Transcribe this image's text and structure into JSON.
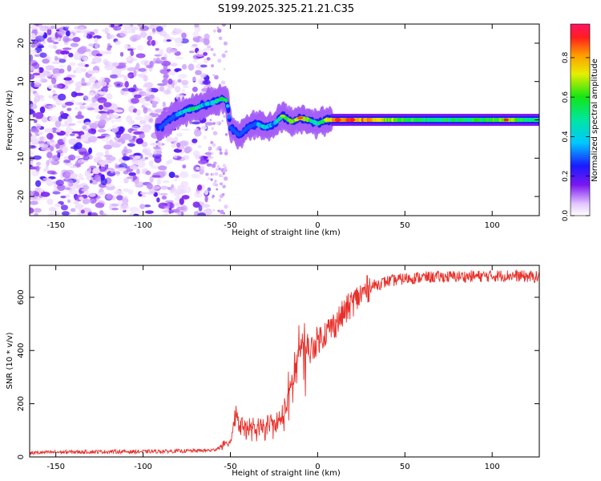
{
  "title": "S199.2025.325.21.21.C35",
  "chart_data": [
    {
      "type": "heatmap",
      "name": "spectrogram",
      "xlabel": "Height of straight line (km)",
      "ylabel": "Frequency (Hz)",
      "xlim": [
        -165,
        127
      ],
      "ylim": [
        -25,
        25
      ],
      "xticks": [
        -150,
        -100,
        -50,
        0,
        50,
        100
      ],
      "yticks": [
        -20,
        -10,
        0,
        10,
        20
      ],
      "xtick_labels": [
        "-150",
        "-100",
        "-50",
        "0",
        "50",
        "100"
      ],
      "ytick_labels": [
        "-20",
        "-10",
        "0",
        "10",
        "20"
      ],
      "colorbar": {
        "label": "Normalized spectral amplitude",
        "range": [
          0.0,
          0.97
        ],
        "ticks": [
          0.0,
          0.2,
          0.4,
          0.6,
          0.8
        ],
        "tick_labels": [
          "0.0",
          "0.2",
          "0.4",
          "0.6",
          "0.8"
        ]
      },
      "signal_ridge": {
        "description_free": true,
        "x": [
          -90,
          -85,
          -80,
          -75,
          -70,
          -65,
          -60,
          -55,
          -52,
          -50,
          -45,
          -40,
          -35,
          -30,
          -25,
          -20,
          -15,
          -10,
          -5,
          0,
          5,
          10,
          20,
          40,
          60,
          80,
          100,
          110,
          120,
          127
        ],
        "y": [
          -2,
          0,
          1.5,
          2.5,
          3,
          4,
          4.5,
          5.5,
          5,
          -2,
          -4,
          -2,
          -1,
          -2,
          -1,
          1,
          -0.5,
          0.5,
          0,
          -1,
          0,
          0,
          0,
          0,
          0,
          0,
          0,
          0,
          0,
          0
        ],
        "amplitude": [
          0.15,
          0.2,
          0.3,
          0.45,
          0.5,
          0.4,
          0.4,
          0.55,
          0.5,
          0.25,
          0.2,
          0.2,
          0.3,
          0.45,
          0.35,
          0.55,
          0.6,
          0.75,
          0.6,
          0.5,
          0.65,
          0.85,
          0.9,
          0.7,
          0.55,
          0.55,
          0.6,
          0.7,
          0.55,
          0.5
        ]
      }
    },
    {
      "type": "line",
      "name": "snr",
      "xlabel": "Height of straight line (km)",
      "ylabel": "SNR (10 * v/v)",
      "xlim": [
        -165,
        127
      ],
      "ylim": [
        0,
        720
      ],
      "xticks": [
        -150,
        -100,
        -50,
        0,
        50,
        100
      ],
      "yticks": [
        0,
        200,
        400,
        600
      ],
      "xtick_labels": [
        "-150",
        "-100",
        "-50",
        "0",
        "50",
        "100"
      ],
      "ytick_labels": [
        "0",
        "200",
        "400",
        "600"
      ],
      "color": "#e8302a",
      "series": [
        {
          "name": "SNR",
          "x": [
            -165,
            -150,
            -120,
            -100,
            -80,
            -60,
            -55,
            -50,
            -47,
            -45,
            -40,
            -35,
            -30,
            -25,
            -22,
            -20,
            -18,
            -15,
            -12,
            -10,
            -8,
            -5,
            -2,
            0,
            5,
            10,
            15,
            20,
            25,
            30,
            35,
            40,
            50,
            60,
            80,
            100,
            110,
            120,
            127
          ],
          "y": [
            15,
            18,
            20,
            20,
            22,
            25,
            40,
            60,
            170,
            130,
            110,
            100,
            110,
            120,
            130,
            150,
            200,
            260,
            350,
            420,
            380,
            390,
            420,
            440,
            470,
            500,
            540,
            580,
            610,
            640,
            650,
            660,
            670,
            675,
            678,
            680,
            682,
            678,
            676
          ]
        }
      ]
    }
  ]
}
